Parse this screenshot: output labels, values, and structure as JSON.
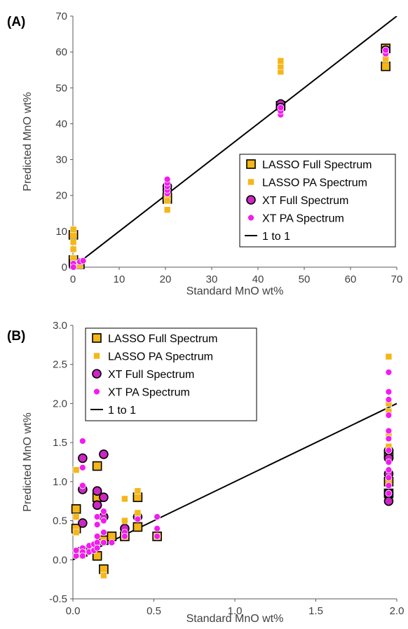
{
  "chart_data": [
    {
      "type": "scatter",
      "panel_label": "(A)",
      "xlabel": "Standard MnO wt%",
      "ylabel": "Predicted MnO wt%",
      "xlim": [
        0,
        70
      ],
      "ylim": [
        0,
        70
      ],
      "xticks": [
        0,
        10,
        20,
        30,
        40,
        50,
        60,
        70
      ],
      "yticks": [
        0,
        10,
        20,
        30,
        40,
        50,
        60,
        70
      ],
      "grid": false,
      "legend_position": "right",
      "series": [
        {
          "name": "LASSO Full Spectrum",
          "marker": "square-outline",
          "color": "#F5B617",
          "edge": "#000000",
          "points": [
            [
              0.1,
              9
            ],
            [
              0.1,
              2
            ],
            [
              0.2,
              1
            ],
            [
              1.5,
              0.8
            ],
            [
              20.4,
              19
            ],
            [
              20.4,
              19.5
            ],
            [
              44.9,
              45
            ],
            [
              67.6,
              56
            ],
            [
              67.6,
              61
            ]
          ]
        },
        {
          "name": "LASSO PA Spectrum",
          "marker": "square",
          "color": "#F5B617",
          "points": [
            [
              0.1,
              10.5
            ],
            [
              0.1,
              7
            ],
            [
              0.1,
              5
            ],
            [
              0.1,
              2.5
            ],
            [
              1.5,
              0.5
            ],
            [
              20.4,
              16
            ],
            [
              20.4,
              18.5
            ],
            [
              44.9,
              54.5
            ],
            [
              44.9,
              56
            ],
            [
              44.9,
              57.5
            ],
            [
              67.6,
              58
            ],
            [
              67.6,
              60
            ]
          ]
        },
        {
          "name": "XT Full Spectrum",
          "marker": "circle-outline",
          "color": "#CC27C4",
          "edge": "#000000",
          "points": [
            [
              0.1,
              1.3
            ],
            [
              0.1,
              0.5
            ],
            [
              1.5,
              1.2
            ],
            [
              20.4,
              21.5
            ],
            [
              20.4,
              22.5
            ],
            [
              44.9,
              45.5
            ],
            [
              44.9,
              44.5
            ],
            [
              67.6,
              60.5
            ]
          ]
        },
        {
          "name": "XT PA Spectrum",
          "marker": "circle",
          "color": "#F31BEF",
          "points": [
            [
              0.1,
              1
            ],
            [
              0.1,
              0
            ],
            [
              1.5,
              1.5
            ],
            [
              2.2,
              1.8
            ],
            [
              20.4,
              20.5
            ],
            [
              20.4,
              21.5
            ],
            [
              20.4,
              22.5
            ],
            [
              20.4,
              23.5
            ],
            [
              20.4,
              24.5
            ],
            [
              44.9,
              42.5
            ],
            [
              44.9,
              43.5
            ],
            [
              44.9,
              44.5
            ],
            [
              67.6,
              59.5
            ],
            [
              67.6,
              60.5
            ]
          ]
        },
        {
          "name": "1 to 1",
          "line": true,
          "color": "#000000",
          "points": [
            [
              0,
              0
            ],
            [
              70,
              70
            ]
          ]
        }
      ]
    },
    {
      "type": "scatter",
      "panel_label": "(B)",
      "xlabel": "Standard MnO wt%",
      "ylabel": "Predicted MnO wt%",
      "xlim": [
        0.0,
        2.0
      ],
      "ylim": [
        -0.5,
        3.0
      ],
      "xticks": [
        "0.0",
        "0.5",
        "1.0",
        "1.5",
        "2.0"
      ],
      "yticks": [
        "-0.5",
        "0.0",
        "0.5",
        "1.0",
        "1.5",
        "2.0",
        "2.5",
        "3.0"
      ],
      "grid": false,
      "legend_position": "top-left",
      "series": [
        {
          "name": "LASSO Full Spectrum",
          "marker": "square-outline",
          "color": "#F5B617",
          "edge": "#000000",
          "points": [
            [
              0.02,
              0.65
            ],
            [
              0.02,
              0.4
            ],
            [
              0.06,
              0.1
            ],
            [
              0.15,
              1.2
            ],
            [
              0.15,
              0.8
            ],
            [
              0.15,
              0.05
            ],
            [
              0.19,
              -0.12
            ],
            [
              0.19,
              0.25
            ],
            [
              0.24,
              0.3
            ],
            [
              0.32,
              0.3
            ],
            [
              0.4,
              0.8
            ],
            [
              0.4,
              0.42
            ],
            [
              0.52,
              0.3
            ],
            [
              1.95,
              1.35
            ],
            [
              1.95,
              1.0
            ],
            [
              1.95,
              0.85
            ]
          ]
        },
        {
          "name": "LASSO PA Spectrum",
          "marker": "square",
          "color": "#F5B617",
          "points": [
            [
              0.02,
              1.15
            ],
            [
              0.02,
              0.55
            ],
            [
              0.02,
              0.35
            ],
            [
              0.05,
              0.08
            ],
            [
              0.06,
              0.05
            ],
            [
              0.19,
              -0.2
            ],
            [
              0.32,
              0.78
            ],
            [
              0.32,
              0.5
            ],
            [
              0.4,
              0.88
            ],
            [
              0.4,
              0.6
            ],
            [
              1.95,
              2.6
            ],
            [
              1.95,
              2.0
            ],
            [
              1.95,
              1.9
            ],
            [
              1.95,
              1.6
            ],
            [
              1.95,
              1.45
            ]
          ]
        },
        {
          "name": "XT Full Spectrum",
          "marker": "circle-outline",
          "color": "#CC27C4",
          "edge": "#000000",
          "points": [
            [
              0.06,
              1.3
            ],
            [
              0.06,
              0.9
            ],
            [
              0.06,
              0.47
            ],
            [
              0.15,
              0.88
            ],
            [
              0.15,
              0.7
            ],
            [
              0.19,
              1.35
            ],
            [
              0.19,
              0.8
            ],
            [
              0.19,
              0.55
            ],
            [
              0.32,
              0.4
            ],
            [
              0.4,
              0.55
            ],
            [
              1.95,
              1.4
            ],
            [
              1.95,
              1.3
            ],
            [
              1.95,
              1.1
            ],
            [
              1.95,
              0.85
            ],
            [
              1.95,
              0.75
            ]
          ]
        },
        {
          "name": "XT PA Spectrum",
          "marker": "circle",
          "color": "#F31BEF",
          "points": [
            [
              0.02,
              0.05
            ],
            [
              0.02,
              0.12
            ],
            [
              0.06,
              1.52
            ],
            [
              0.06,
              1.18
            ],
            [
              0.06,
              0.95
            ],
            [
              0.06,
              0.15
            ],
            [
              0.06,
              0.1
            ],
            [
              0.06,
              0.05
            ],
            [
              0.1,
              0.1
            ],
            [
              0.1,
              0.18
            ],
            [
              0.13,
              0.12
            ],
            [
              0.13,
              0.2
            ],
            [
              0.15,
              0.55
            ],
            [
              0.15,
              0.45
            ],
            [
              0.15,
              0.3
            ],
            [
              0.15,
              0.22
            ],
            [
              0.15,
              0.15
            ],
            [
              0.19,
              0.62
            ],
            [
              0.19,
              0.5
            ],
            [
              0.19,
              0.35
            ],
            [
              0.19,
              0.22
            ],
            [
              0.24,
              0.22
            ],
            [
              0.32,
              0.35
            ],
            [
              0.32,
              0.3
            ],
            [
              0.4,
              0.52
            ],
            [
              0.52,
              0.55
            ],
            [
              0.52,
              0.4
            ],
            [
              0.52,
              0.3
            ],
            [
              1.95,
              2.4
            ],
            [
              1.95,
              2.15
            ],
            [
              1.95,
              2.05
            ],
            [
              1.95,
              1.85
            ],
            [
              1.95,
              1.65
            ],
            [
              1.95,
              1.55
            ],
            [
              1.95,
              1.4
            ],
            [
              1.95,
              1.25
            ],
            [
              1.95,
              1.15
            ],
            [
              1.95,
              1.05
            ],
            [
              1.95,
              0.95
            ],
            [
              1.95,
              0.85
            ]
          ]
        },
        {
          "name": "1 to 1",
          "line": true,
          "color": "#000000",
          "points": [
            [
              0,
              0
            ],
            [
              2,
              2
            ]
          ]
        }
      ]
    }
  ]
}
